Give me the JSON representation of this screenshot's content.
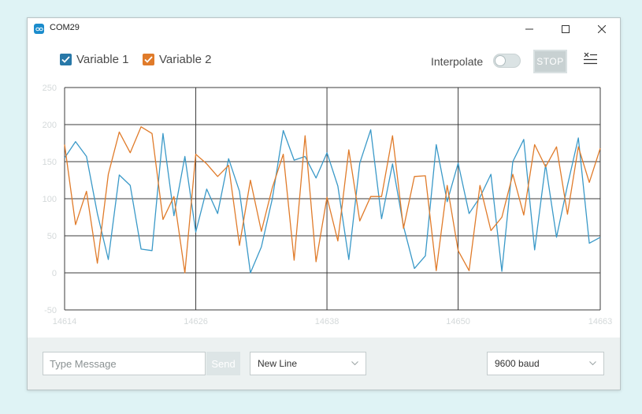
{
  "window": {
    "title": "COM29"
  },
  "legend": {
    "items": [
      {
        "label": "Variable 1",
        "color": "#2878a8",
        "checked": true
      },
      {
        "label": "Variable 2",
        "color": "#e07b2a",
        "checked": true
      }
    ]
  },
  "toolbar": {
    "interpolate_label": "Interpolate",
    "interpolate_on": false,
    "stop_label": "STOP",
    "clear_icon": "clear-lines-icon"
  },
  "bottom": {
    "message_placeholder": "Type Message",
    "send_label": "Send",
    "line_ending": "New Line",
    "baud": "9600 baud"
  },
  "chart_data": {
    "type": "line",
    "x_ticks": [
      "14614",
      "14626",
      "14638",
      "14650",
      "14663"
    ],
    "y_ticks": [
      "250",
      "200",
      "150",
      "100",
      "50",
      "0",
      "-50"
    ],
    "ylim": [
      -50,
      250
    ],
    "x_range": [
      14614,
      14663
    ],
    "grid": true,
    "series": [
      {
        "name": "Variable 1",
        "color": "#3a99c8",
        "values": [
          155,
          177,
          157,
          80,
          18,
          132,
          118,
          32,
          30,
          188,
          77,
          157,
          55,
          113,
          80,
          154,
          110,
          0,
          35,
          100,
          192,
          152,
          157,
          128,
          162,
          117,
          18,
          148,
          193,
          73,
          147,
          63,
          6,
          23,
          173,
          96,
          148,
          80,
          102,
          133,
          2,
          150,
          180,
          31,
          146,
          48,
          118,
          182,
          40,
          48
        ]
      },
      {
        "name": "Variable 2",
        "color": "#e07b2a",
        "values": [
          173,
          65,
          110,
          13,
          133,
          190,
          162,
          197,
          188,
          72,
          103,
          0,
          160,
          147,
          130,
          145,
          37,
          125,
          56,
          115,
          160,
          17,
          185,
          15,
          102,
          43,
          166,
          70,
          103,
          103,
          185,
          60,
          130,
          131,
          3,
          118,
          30,
          3,
          118,
          57,
          75,
          133,
          78,
          173,
          143,
          170,
          79,
          170,
          122,
          168
        ]
      }
    ]
  }
}
